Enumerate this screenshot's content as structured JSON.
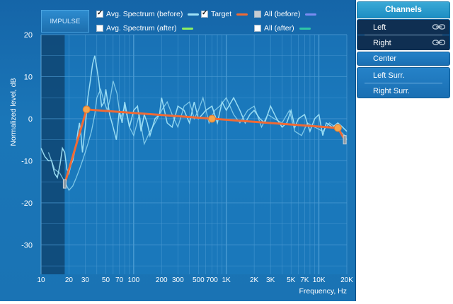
{
  "impulse_button": "IMPULSE",
  "legend": [
    {
      "label": "Avg. Spectrum (before)",
      "checked": true,
      "color": "#9fe2f7"
    },
    {
      "label": "Target",
      "checked": true,
      "color": "#f06a35"
    },
    {
      "label": "All (before)",
      "checked": false,
      "color": "#7a8cf2"
    },
    {
      "label": "Avg. Spectrum (after)",
      "checked": false,
      "color": "#8ef060"
    },
    {
      "label": "All (after)",
      "checked": false,
      "color": "#2fc7a6"
    }
  ],
  "channels": {
    "title": "Channels",
    "items": [
      "Left",
      "Right",
      "Center",
      "Left Surr.",
      "Right Surr."
    ]
  },
  "chart_data": {
    "type": "line",
    "xlabel": "Frequency, Hz",
    "ylabel": "Normalized level, dB",
    "x_scale": "log",
    "xlim": [
      10,
      20000
    ],
    "ylim": [
      -37,
      20
    ],
    "x_tick_labels": [
      "10",
      "20",
      "30",
      "50",
      "70",
      "100",
      "200",
      "300",
      "500",
      "700",
      "1K",
      "2K",
      "3K",
      "5K",
      "7K",
      "10K",
      "20K"
    ],
    "x_tick_values": [
      10,
      20,
      30,
      50,
      70,
      100,
      200,
      300,
      500,
      700,
      1000,
      2000,
      3000,
      5000,
      7000,
      10000,
      20000
    ],
    "y_tick_labels": [
      "20",
      "10",
      "0",
      "-10",
      "-20",
      "-30"
    ],
    "y_tick_values": [
      20,
      10,
      0,
      -10,
      -20,
      -30
    ],
    "grid": true,
    "colors": {
      "before": "#9fe2f7",
      "target": "#f06a35",
      "marker": "#f5a54a"
    },
    "series": [
      {
        "name": "Target",
        "x": [
          18,
          31,
          700,
          16000,
          19000
        ],
        "y": [
          -15.5,
          2.2,
          0.0,
          -2.2,
          -5.0
        ]
      },
      {
        "name": "Avg. Spectrum (before)",
        "x": [
          10,
          11,
          12,
          13,
          14,
          15,
          16,
          17,
          18,
          19,
          20,
          21,
          22,
          23,
          24,
          25,
          26,
          27,
          28,
          29,
          30,
          32,
          34,
          36,
          38,
          40,
          42,
          45,
          48,
          50,
          55,
          60,
          65,
          70,
          75,
          80,
          90,
          100,
          110,
          120,
          130,
          140,
          150,
          170,
          190,
          200,
          230,
          260,
          300,
          350,
          400,
          450,
          500,
          550,
          600,
          700,
          800,
          900,
          1000,
          1200,
          1400,
          1600,
          1800,
          2000,
          2300,
          2600,
          3000,
          3500,
          4000,
          4500,
          5000,
          5500,
          6000,
          7000,
          8000,
          9000,
          10000,
          11000,
          12000,
          14000,
          16000,
          18000,
          20000
        ],
        "y": [
          -7,
          -9,
          -10,
          -10,
          -13,
          -14,
          -11,
          -7,
          -8,
          -12,
          -13,
          -11,
          -10,
          -8,
          -6,
          -3,
          -1,
          -4,
          -8,
          -5,
          -2,
          5,
          9,
          13,
          15,
          12,
          9,
          3,
          4,
          7,
          1,
          -2,
          -5,
          2,
          -1,
          4,
          -2,
          2,
          3,
          -3,
          1,
          -1,
          -4,
          0,
          1,
          5,
          -1,
          -2,
          3,
          2,
          -1,
          4,
          0,
          1,
          2,
          3,
          -1,
          4,
          2,
          5,
          2,
          -1,
          1,
          2,
          0,
          -1,
          3,
          0,
          -2,
          -1,
          2,
          -2,
          0,
          1,
          -3,
          0,
          1,
          -4,
          -1,
          -2,
          -1,
          -2,
          -3
        ]
      },
      {
        "name": "Avg. Spectrum (before) 2",
        "x": [
          12,
          14,
          16,
          18,
          20,
          22,
          24,
          26,
          28,
          30,
          32,
          35,
          38,
          40,
          44,
          48,
          52,
          56,
          60,
          66,
          72,
          80,
          90,
          100,
          115,
          130,
          150,
          170,
          200,
          230,
          260,
          300,
          350,
          400,
          450,
          500,
          560,
          650,
          750,
          850,
          1000,
          1200,
          1400,
          1700,
          2000,
          2400,
          2800,
          3300,
          4000,
          4800,
          5500,
          6500,
          7500,
          9000,
          11000,
          13000,
          15000,
          17000,
          19000,
          20000
        ],
        "y": [
          -8,
          -12,
          -13,
          -15,
          -17,
          -16,
          -14,
          -12,
          -10,
          -8,
          -6,
          -3,
          1,
          5,
          7,
          4,
          2,
          5,
          9,
          6,
          0,
          3,
          -2,
          -4,
          1,
          -6,
          -3,
          -1,
          2,
          4,
          1,
          -2,
          3,
          4,
          0,
          2,
          5,
          -1,
          2,
          3,
          5,
          1,
          -1,
          2,
          3,
          -2,
          1,
          0,
          -1,
          2,
          -3,
          -4,
          -1,
          -2,
          -3,
          -1,
          -2,
          -3,
          -4,
          -5
        ]
      }
    ]
  }
}
